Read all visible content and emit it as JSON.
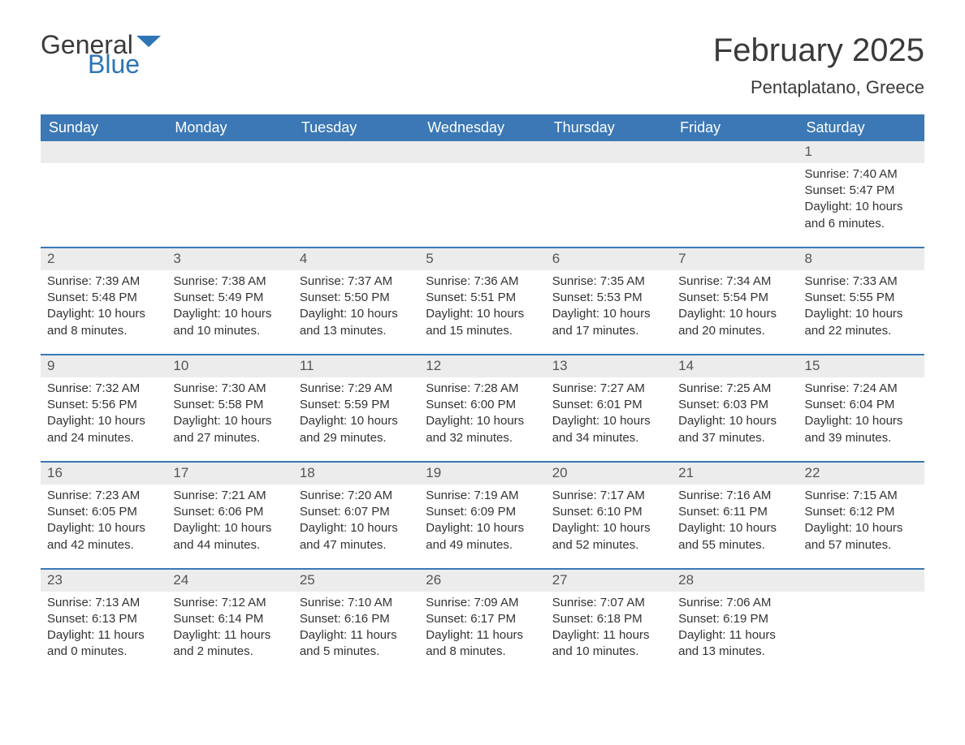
{
  "logo": {
    "word1": "General",
    "word2": "Blue"
  },
  "title": "February 2025",
  "location": "Pentaplatano, Greece",
  "colors": {
    "header_bg": "#3b78b5",
    "header_text": "#ffffff",
    "daynum_bg": "#ececec",
    "daynum_text": "#555555",
    "body_text": "#333333",
    "week_border": "#3b78b5",
    "logo_accent": "#2e75b6",
    "page_bg": "#ffffff"
  },
  "weekdays": [
    "Sunday",
    "Monday",
    "Tuesday",
    "Wednesday",
    "Thursday",
    "Friday",
    "Saturday"
  ],
  "weeks": [
    [
      null,
      null,
      null,
      null,
      null,
      null,
      {
        "n": "1",
        "sunrise": "Sunrise: 7:40 AM",
        "sunset": "Sunset: 5:47 PM",
        "daylight": "Daylight: 10 hours and 6 minutes."
      }
    ],
    [
      {
        "n": "2",
        "sunrise": "Sunrise: 7:39 AM",
        "sunset": "Sunset: 5:48 PM",
        "daylight": "Daylight: 10 hours and 8 minutes."
      },
      {
        "n": "3",
        "sunrise": "Sunrise: 7:38 AM",
        "sunset": "Sunset: 5:49 PM",
        "daylight": "Daylight: 10 hours and 10 minutes."
      },
      {
        "n": "4",
        "sunrise": "Sunrise: 7:37 AM",
        "sunset": "Sunset: 5:50 PM",
        "daylight": "Daylight: 10 hours and 13 minutes."
      },
      {
        "n": "5",
        "sunrise": "Sunrise: 7:36 AM",
        "sunset": "Sunset: 5:51 PM",
        "daylight": "Daylight: 10 hours and 15 minutes."
      },
      {
        "n": "6",
        "sunrise": "Sunrise: 7:35 AM",
        "sunset": "Sunset: 5:53 PM",
        "daylight": "Daylight: 10 hours and 17 minutes."
      },
      {
        "n": "7",
        "sunrise": "Sunrise: 7:34 AM",
        "sunset": "Sunset: 5:54 PM",
        "daylight": "Daylight: 10 hours and 20 minutes."
      },
      {
        "n": "8",
        "sunrise": "Sunrise: 7:33 AM",
        "sunset": "Sunset: 5:55 PM",
        "daylight": "Daylight: 10 hours and 22 minutes."
      }
    ],
    [
      {
        "n": "9",
        "sunrise": "Sunrise: 7:32 AM",
        "sunset": "Sunset: 5:56 PM",
        "daylight": "Daylight: 10 hours and 24 minutes."
      },
      {
        "n": "10",
        "sunrise": "Sunrise: 7:30 AM",
        "sunset": "Sunset: 5:58 PM",
        "daylight": "Daylight: 10 hours and 27 minutes."
      },
      {
        "n": "11",
        "sunrise": "Sunrise: 7:29 AM",
        "sunset": "Sunset: 5:59 PM",
        "daylight": "Daylight: 10 hours and 29 minutes."
      },
      {
        "n": "12",
        "sunrise": "Sunrise: 7:28 AM",
        "sunset": "Sunset: 6:00 PM",
        "daylight": "Daylight: 10 hours and 32 minutes."
      },
      {
        "n": "13",
        "sunrise": "Sunrise: 7:27 AM",
        "sunset": "Sunset: 6:01 PM",
        "daylight": "Daylight: 10 hours and 34 minutes."
      },
      {
        "n": "14",
        "sunrise": "Sunrise: 7:25 AM",
        "sunset": "Sunset: 6:03 PM",
        "daylight": "Daylight: 10 hours and 37 minutes."
      },
      {
        "n": "15",
        "sunrise": "Sunrise: 7:24 AM",
        "sunset": "Sunset: 6:04 PM",
        "daylight": "Daylight: 10 hours and 39 minutes."
      }
    ],
    [
      {
        "n": "16",
        "sunrise": "Sunrise: 7:23 AM",
        "sunset": "Sunset: 6:05 PM",
        "daylight": "Daylight: 10 hours and 42 minutes."
      },
      {
        "n": "17",
        "sunrise": "Sunrise: 7:21 AM",
        "sunset": "Sunset: 6:06 PM",
        "daylight": "Daylight: 10 hours and 44 minutes."
      },
      {
        "n": "18",
        "sunrise": "Sunrise: 7:20 AM",
        "sunset": "Sunset: 6:07 PM",
        "daylight": "Daylight: 10 hours and 47 minutes."
      },
      {
        "n": "19",
        "sunrise": "Sunrise: 7:19 AM",
        "sunset": "Sunset: 6:09 PM",
        "daylight": "Daylight: 10 hours and 49 minutes."
      },
      {
        "n": "20",
        "sunrise": "Sunrise: 7:17 AM",
        "sunset": "Sunset: 6:10 PM",
        "daylight": "Daylight: 10 hours and 52 minutes."
      },
      {
        "n": "21",
        "sunrise": "Sunrise: 7:16 AM",
        "sunset": "Sunset: 6:11 PM",
        "daylight": "Daylight: 10 hours and 55 minutes."
      },
      {
        "n": "22",
        "sunrise": "Sunrise: 7:15 AM",
        "sunset": "Sunset: 6:12 PM",
        "daylight": "Daylight: 10 hours and 57 minutes."
      }
    ],
    [
      {
        "n": "23",
        "sunrise": "Sunrise: 7:13 AM",
        "sunset": "Sunset: 6:13 PM",
        "daylight": "Daylight: 11 hours and 0 minutes."
      },
      {
        "n": "24",
        "sunrise": "Sunrise: 7:12 AM",
        "sunset": "Sunset: 6:14 PM",
        "daylight": "Daylight: 11 hours and 2 minutes."
      },
      {
        "n": "25",
        "sunrise": "Sunrise: 7:10 AM",
        "sunset": "Sunset: 6:16 PM",
        "daylight": "Daylight: 11 hours and 5 minutes."
      },
      {
        "n": "26",
        "sunrise": "Sunrise: 7:09 AM",
        "sunset": "Sunset: 6:17 PM",
        "daylight": "Daylight: 11 hours and 8 minutes."
      },
      {
        "n": "27",
        "sunrise": "Sunrise: 7:07 AM",
        "sunset": "Sunset: 6:18 PM",
        "daylight": "Daylight: 11 hours and 10 minutes."
      },
      {
        "n": "28",
        "sunrise": "Sunrise: 7:06 AM",
        "sunset": "Sunset: 6:19 PM",
        "daylight": "Daylight: 11 hours and 13 minutes."
      },
      null
    ]
  ]
}
